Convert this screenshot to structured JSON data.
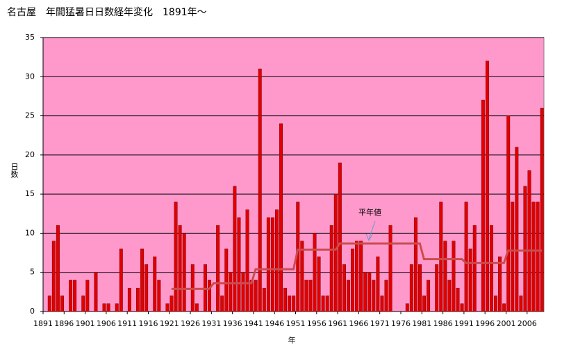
{
  "chart_data": {
    "type": "bar",
    "title": "名古屋　年間猛暑日日数経年変化　1891年～",
    "x_label": "年",
    "y_label": "日数",
    "annotation": "平年値",
    "categories": [
      "1891",
      null,
      null,
      null,
      null,
      "1896",
      null,
      null,
      null,
      null,
      "1901",
      null,
      null,
      null,
      null,
      "1906",
      null,
      null,
      null,
      null,
      "1911",
      null,
      null,
      null,
      null,
      "1916",
      null,
      null,
      null,
      null,
      "1921",
      null,
      null,
      null,
      null,
      "1926",
      null,
      null,
      null,
      null,
      "1931",
      null,
      null,
      null,
      null,
      "1936",
      null,
      null,
      null,
      null,
      "1941",
      null,
      null,
      null,
      null,
      "1946",
      null,
      null,
      null,
      null,
      "1951",
      null,
      null,
      null,
      null,
      "1956",
      null,
      null,
      null,
      null,
      "1961",
      null,
      null,
      null,
      null,
      "1966",
      null,
      null,
      null,
      null,
      "1971",
      null,
      null,
      null,
      null,
      "1976",
      null,
      null,
      null,
      null,
      "1981",
      null,
      null,
      null,
      null,
      "1986",
      null,
      null,
      null,
      null,
      "1991",
      null,
      null,
      null,
      null,
      "1996",
      null,
      null,
      null,
      null,
      "2001",
      null,
      null,
      null,
      null,
      "2006",
      null,
      null,
      null
    ],
    "values": [
      0,
      2,
      9,
      11,
      2,
      0,
      4,
      4,
      0,
      2,
      4,
      0,
      5,
      0,
      1,
      1,
      0,
      1,
      8,
      0,
      3,
      0,
      3,
      8,
      6,
      0,
      7,
      4,
      0,
      1,
      2,
      14,
      11,
      10,
      0,
      6,
      1,
      0,
      6,
      4,
      0,
      11,
      2,
      8,
      5,
      16,
      12,
      5,
      13,
      4,
      4,
      31,
      3,
      12,
      12,
      13,
      24,
      3,
      2,
      2,
      14,
      9,
      4,
      4,
      10,
      7,
      2,
      2,
      11,
      15,
      19,
      6,
      4,
      8,
      9,
      9,
      5,
      5,
      4,
      7,
      2,
      4,
      11,
      0,
      0,
      0,
      1,
      6,
      12,
      6,
      2,
      4,
      0,
      6,
      14,
      9,
      4,
      9,
      3,
      1,
      14,
      8,
      11,
      0,
      27,
      32,
      11,
      2,
      7,
      1,
      25,
      14,
      21,
      2,
      16,
      18,
      14,
      14,
      26
    ],
    "color": "#e00000",
    "normal": {
      "name": "平年値",
      "color": "#cc4c4c",
      "values": [
        null,
        null,
        null,
        null,
        null,
        null,
        null,
        null,
        null,
        null,
        null,
        null,
        null,
        null,
        null,
        null,
        null,
        null,
        null,
        null,
        null,
        null,
        null,
        null,
        null,
        null,
        null,
        null,
        null,
        null,
        2.9,
        2.9,
        2.9,
        2.9,
        2.9,
        2.9,
        2.9,
        2.9,
        2.9,
        2.9,
        3.6,
        3.6,
        3.6,
        3.6,
        3.6,
        3.6,
        3.6,
        3.6,
        3.6,
        3.6,
        5.4,
        5.4,
        5.4,
        5.4,
        5.4,
        5.4,
        5.4,
        5.4,
        5.4,
        5.4,
        7.9,
        7.9,
        7.9,
        7.9,
        7.9,
        7.9,
        7.9,
        7.9,
        7.9,
        7.9,
        8.7,
        8.7,
        8.7,
        8.7,
        8.7,
        8.7,
        8.7,
        8.7,
        8.7,
        8.7,
        8.7,
        8.7,
        8.7,
        8.7,
        8.7,
        8.7,
        8.7,
        8.7,
        8.7,
        8.7,
        6.7,
        6.7,
        6.7,
        6.7,
        6.7,
        6.7,
        6.7,
        6.7,
        6.7,
        6.7,
        6.2,
        6.2,
        6.2,
        6.2,
        6.2,
        6.2,
        6.2,
        6.2,
        6.2,
        6.2,
        7.8,
        7.8,
        7.8,
        7.8,
        7.8,
        7.8,
        7.8,
        7.8,
        7.8
      ]
    },
    "ylim": [
      0,
      35
    ],
    "yticks": [
      0,
      5,
      10,
      15,
      20,
      25,
      30,
      35
    ],
    "grid": true,
    "background": "#ff99cc"
  }
}
